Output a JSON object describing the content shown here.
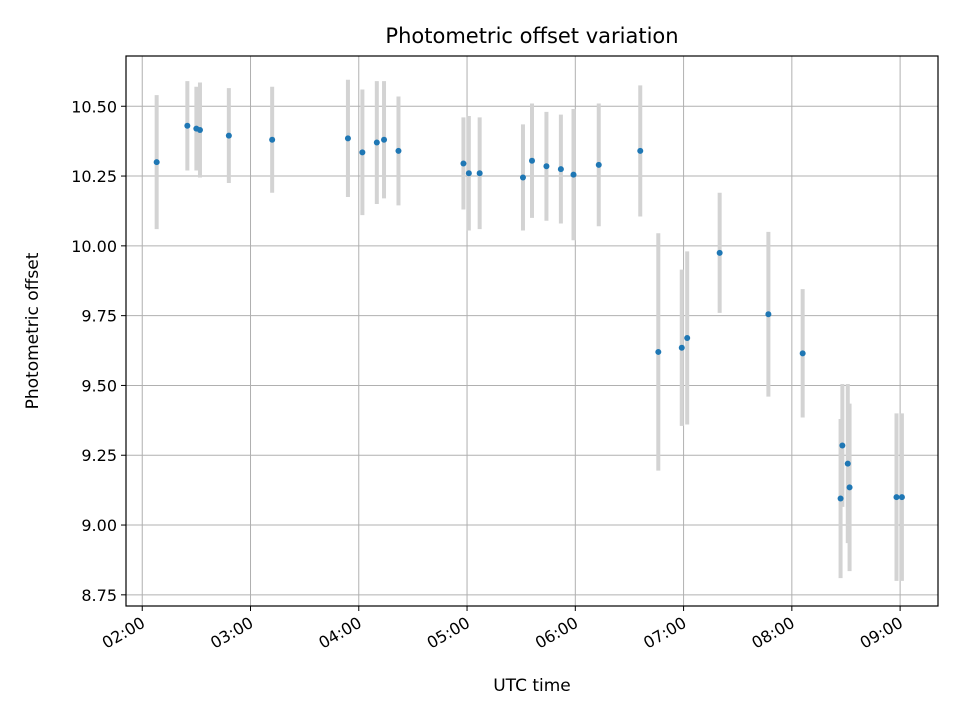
{
  "chart_data": {
    "type": "scatter",
    "title": "Photometric offset variation",
    "xlabel": "UTC time",
    "ylabel": "Photometric offset",
    "x_tick_labels": [
      "02:00",
      "03:00",
      "04:00",
      "05:00",
      "06:00",
      "07:00",
      "08:00",
      "09:00"
    ],
    "y_tick_labels": [
      "8.75",
      "9.00",
      "9.25",
      "9.50",
      "9.75",
      "10.00",
      "10.25",
      "10.50"
    ],
    "y_ticks": [
      8.75,
      9.0,
      9.25,
      9.5,
      9.75,
      10.0,
      10.25,
      10.5
    ],
    "xlim": [
      "01:51",
      "09:21"
    ],
    "ylim": [
      8.71,
      10.68
    ],
    "grid": true,
    "colors": {
      "point": "#1f77b4",
      "errorbar": "#d3d3d3",
      "grid": "#b0b0b0"
    },
    "points": [
      {
        "x": "02:08",
        "y": 10.3,
        "err": 0.24
      },
      {
        "x": "02:25",
        "y": 10.43,
        "err": 0.16
      },
      {
        "x": "02:30",
        "y": 10.42,
        "err": 0.15
      },
      {
        "x": "02:32",
        "y": 10.415,
        "err": 0.17
      },
      {
        "x": "02:48",
        "y": 10.395,
        "err": 0.17
      },
      {
        "x": "03:12",
        "y": 10.38,
        "err": 0.19
      },
      {
        "x": "03:54",
        "y": 10.385,
        "err": 0.21
      },
      {
        "x": "04:02",
        "y": 10.335,
        "err": 0.225
      },
      {
        "x": "04:10",
        "y": 10.37,
        "err": 0.22
      },
      {
        "x": "04:14",
        "y": 10.38,
        "err": 0.21
      },
      {
        "x": "04:22",
        "y": 10.34,
        "err": 0.195
      },
      {
        "x": "04:58",
        "y": 10.295,
        "err": 0.165
      },
      {
        "x": "05:01",
        "y": 10.26,
        "err": 0.205
      },
      {
        "x": "05:07",
        "y": 10.26,
        "err": 0.2
      },
      {
        "x": "05:31",
        "y": 10.245,
        "err": 0.19
      },
      {
        "x": "05:36",
        "y": 10.305,
        "err": 0.205
      },
      {
        "x": "05:44",
        "y": 10.285,
        "err": 0.195
      },
      {
        "x": "05:52",
        "y": 10.275,
        "err": 0.195
      },
      {
        "x": "05:59",
        "y": 10.255,
        "err": 0.235
      },
      {
        "x": "06:13",
        "y": 10.29,
        "err": 0.22
      },
      {
        "x": "06:36",
        "y": 10.34,
        "err": 0.235
      },
      {
        "x": "06:46",
        "y": 9.62,
        "err": 0.425
      },
      {
        "x": "06:59",
        "y": 9.635,
        "err": 0.28
      },
      {
        "x": "07:02",
        "y": 9.67,
        "err": 0.31
      },
      {
        "x": "07:20",
        "y": 9.975,
        "err": 0.215
      },
      {
        "x": "07:47",
        "y": 9.755,
        "err": 0.295
      },
      {
        "x": "08:06",
        "y": 9.615,
        "err": 0.23
      },
      {
        "x": "08:27",
        "y": 9.095,
        "err": 0.285
      },
      {
        "x": "08:28",
        "y": 9.285,
        "err": 0.22
      },
      {
        "x": "08:31",
        "y": 9.22,
        "err": 0.285
      },
      {
        "x": "08:32",
        "y": 9.135,
        "err": 0.3
      },
      {
        "x": "08:58",
        "y": 9.1,
        "err": 0.3
      },
      {
        "x": "09:01",
        "y": 9.1,
        "err": 0.3
      }
    ]
  }
}
